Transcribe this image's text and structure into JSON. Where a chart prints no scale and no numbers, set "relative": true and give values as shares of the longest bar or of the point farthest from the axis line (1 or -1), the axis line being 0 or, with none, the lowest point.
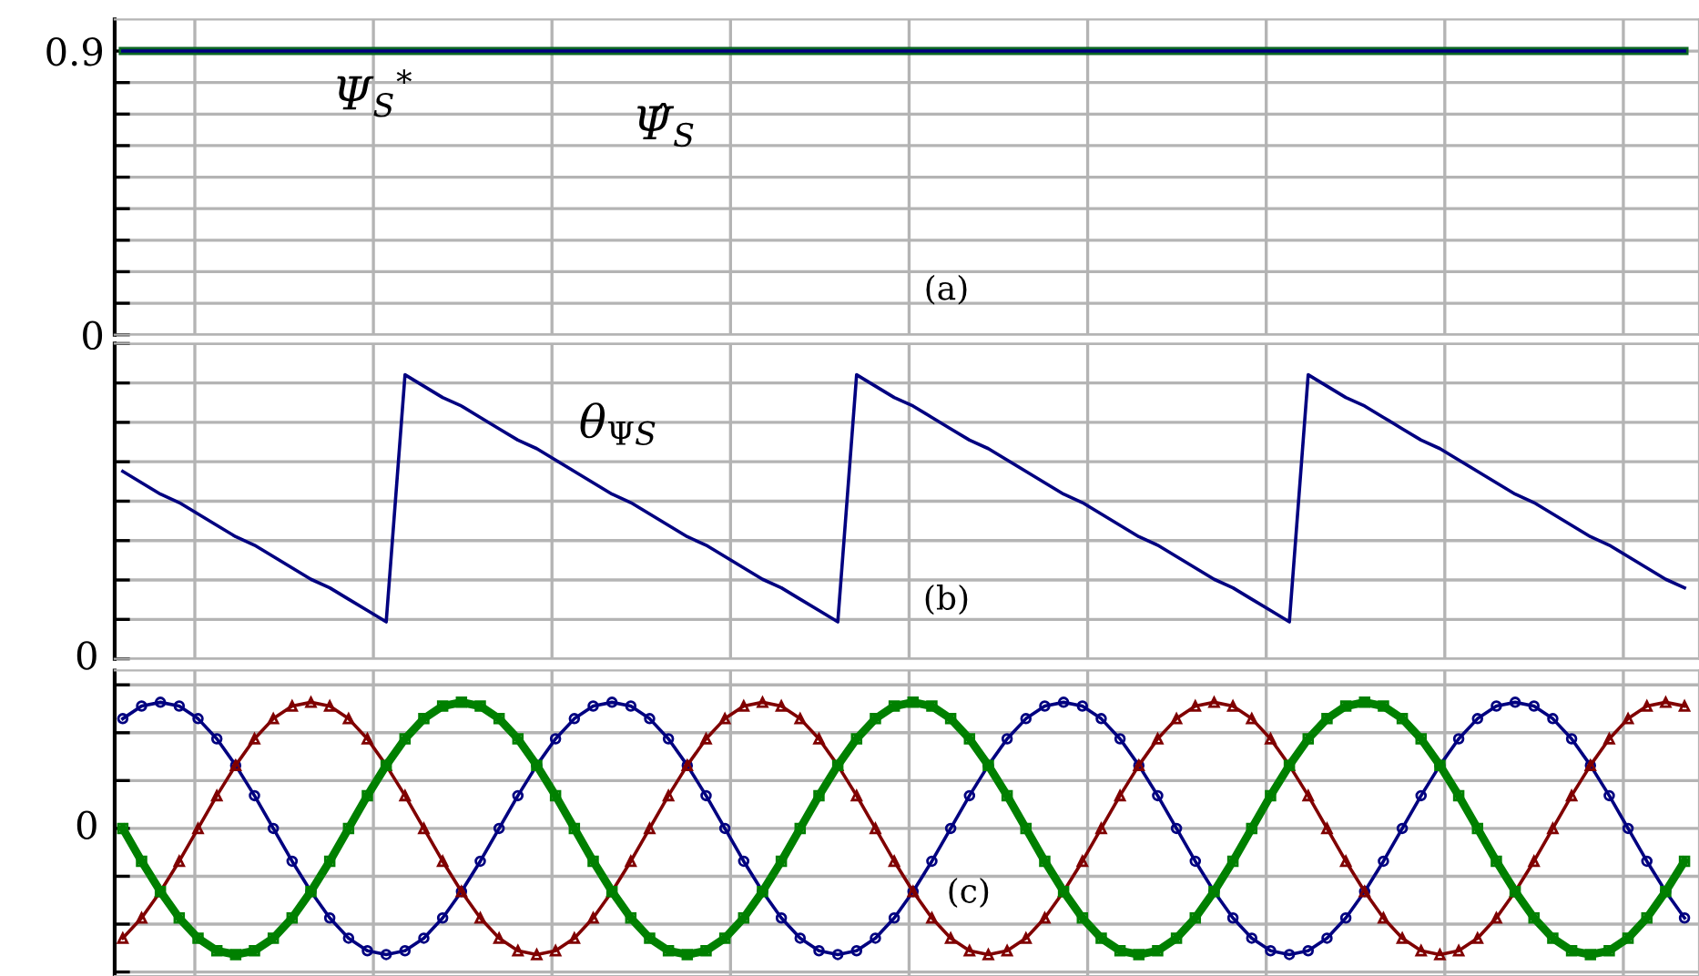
{
  "chart_data": [
    {
      "type": "line",
      "categories": [
        null,
        null,
        null,
        null,
        null,
        null,
        null,
        null,
        null,
        null,
        null,
        null,
        null,
        null,
        null,
        null,
        null,
        null,
        null,
        null,
        null,
        null,
        null,
        null,
        null,
        null,
        null,
        null,
        null,
        null,
        null,
        null,
        null,
        null,
        null,
        null,
        null,
        null,
        null,
        null,
        null,
        null,
        null,
        null,
        null,
        null,
        null,
        null,
        null,
        null,
        null,
        null,
        null,
        null,
        null,
        null,
        null,
        null,
        null,
        null,
        null,
        null,
        null,
        null,
        null,
        null,
        null,
        null,
        null,
        null,
        null,
        null,
        null,
        null,
        null,
        null,
        null,
        null,
        null,
        null,
        null,
        null,
        null,
        null
      ],
      "ylim": [
        0,
        1.0
      ],
      "yticks": [
        0,
        {
          "value": 0.1,
          "label": null
        },
        {
          "value": 0.2,
          "label": null
        },
        {
          "value": 0.3,
          "label": null
        },
        {
          "value": 0.4,
          "label": null
        },
        {
          "value": 0.5,
          "label": null
        },
        {
          "value": 0.6,
          "label": null
        },
        {
          "value": 0.7,
          "label": null
        },
        {
          "value": 0.8,
          "label": null
        },
        0.9
      ],
      "series": [
        {
          "name": "Ψ$_{S}$$^{*}$",
          "color": "#0b6623",
          "values": [
            0.9,
            0.9,
            0.9,
            0.9,
            0.9,
            0.9,
            0.9,
            0.9,
            0.9,
            0.9,
            0.9,
            0.9,
            0.9,
            0.9,
            0.9,
            0.9,
            0.9,
            0.9,
            0.9,
            0.9,
            0.9,
            0.9,
            0.9,
            0.9,
            0.9,
            0.9,
            0.9,
            0.9,
            0.9,
            0.9,
            0.9,
            0.9,
            0.9,
            0.9,
            0.9,
            0.9,
            0.9,
            0.9,
            0.9,
            0.9,
            0.9,
            0.9,
            0.9,
            0.9,
            0.9,
            0.9,
            0.9,
            0.9,
            0.9,
            0.9,
            0.9,
            0.9,
            0.9,
            0.9,
            0.9,
            0.9,
            0.9,
            0.9,
            0.9,
            0.9,
            0.9,
            0.9,
            0.9,
            0.9,
            0.9,
            0.9,
            0.9,
            0.9,
            0.9,
            0.9,
            0.9,
            0.9,
            0.9,
            0.9,
            0.9,
            0.9,
            0.9,
            0.9,
            0.9,
            0.9,
            0.9,
            0.9,
            0.9,
            0.9
          ]
        },
        {
          "name": "Ψ̂$_{S}$",
          "color": "#000080",
          "values": [
            0.9,
            0.9,
            0.9,
            0.9,
            0.9,
            0.9,
            0.9,
            0.9,
            0.9,
            0.9,
            0.9,
            0.9,
            0.9,
            0.9,
            0.9,
            0.9,
            0.9,
            0.9,
            0.9,
            0.9,
            0.9,
            0.9,
            0.9,
            0.9,
            0.9,
            0.9,
            0.9,
            0.9,
            0.9,
            0.9,
            0.9,
            0.9,
            0.9,
            0.9,
            0.9,
            0.9,
            0.9,
            0.9,
            0.9,
            0.9,
            0.9,
            0.9,
            0.9,
            0.9,
            0.9,
            0.9,
            0.9,
            0.9,
            0.9,
            0.9,
            0.9,
            0.9,
            0.9,
            0.9,
            0.9,
            0.9,
            0.9,
            0.9,
            0.9,
            0.9,
            0.9,
            0.9,
            0.9,
            0.9,
            0.9,
            0.9,
            0.9,
            0.9,
            0.9,
            0.9,
            0.9,
            0.9,
            0.9,
            0.9,
            0.9,
            0.9,
            0.9,
            0.9,
            0.9,
            0.9,
            0.9,
            0.9,
            0.9,
            0.9
          ]
        }
      ],
      "grid": true,
      "tick_labels": "y",
      "annotations": [
        "(a)"
      ]
    },
    {
      "type": "line",
      "relative": true,
      "categories": [
        null,
        null,
        null,
        null,
        null,
        null,
        null,
        null,
        null,
        null,
        null,
        null,
        null,
        null,
        null,
        null,
        null,
        null,
        null,
        null,
        null,
        null,
        null,
        null,
        null,
        null,
        null,
        null,
        null,
        null,
        null,
        null,
        null,
        null,
        null,
        null,
        null,
        null,
        null,
        null,
        null,
        null,
        null,
        null,
        null,
        null,
        null,
        null,
        null,
        null,
        null,
        null,
        null,
        null,
        null,
        null,
        null,
        null,
        null,
        null,
        null,
        null,
        null,
        null,
        null,
        null,
        null,
        null,
        null,
        null,
        null,
        null,
        null,
        null,
        null,
        null,
        null,
        null,
        null,
        null,
        null,
        null,
        null,
        null
      ],
      "series": [
        {
          "name": "θ$_{ΨS}$",
          "color": "#000080",
          "values": [
            0.66,
            0.62,
            0.58,
            0.55,
            0.51,
            0.47,
            0.43,
            0.4,
            0.36,
            0.32,
            0.28,
            0.25,
            0.21,
            0.17,
            0.13,
            1,
            0.96,
            0.92,
            0.89,
            0.85,
            0.81,
            0.77,
            0.74,
            0.7,
            0.66,
            0.62,
            0.58,
            0.55,
            0.51,
            0.47,
            0.43,
            0.4,
            0.36,
            0.32,
            0.28,
            0.25,
            0.21,
            0.17,
            0.13,
            1,
            0.96,
            0.92,
            0.89,
            0.85,
            0.81,
            0.77,
            0.74,
            0.7,
            0.66,
            0.62,
            0.58,
            0.55,
            0.51,
            0.47,
            0.43,
            0.4,
            0.36,
            0.32,
            0.28,
            0.25,
            0.21,
            0.17,
            0.13,
            1,
            0.96,
            0.92,
            0.89,
            0.85,
            0.81,
            0.77,
            0.74,
            0.7,
            0.66,
            0.62,
            0.58,
            0.55,
            0.51,
            0.47,
            0.43,
            0.4,
            0.36,
            0.32,
            0.28,
            0.25
          ]
        }
      ],
      "grid": true,
      "tick_labels": "y",
      "annotations": [
        "(b)",
        "0"
      ]
    },
    {
      "type": "line",
      "relative": true,
      "categories": [
        null,
        null,
        null,
        null,
        null,
        null,
        null,
        null,
        null,
        null,
        null,
        null,
        null,
        null,
        null,
        null,
        null,
        null,
        null,
        null,
        null,
        null,
        null,
        null,
        null,
        null,
        null,
        null,
        null,
        null,
        null,
        null,
        null,
        null,
        null,
        null,
        null,
        null,
        null,
        null,
        null,
        null,
        null,
        null,
        null,
        null,
        null,
        null,
        null,
        null,
        null,
        null,
        null,
        null,
        null,
        null,
        null,
        null,
        null,
        null,
        null,
        null,
        null,
        null,
        null,
        null,
        null,
        null,
        null,
        null,
        null,
        null,
        null,
        null,
        null,
        null,
        null,
        null,
        null,
        null,
        null,
        null,
        null,
        null
      ],
      "series": [
        {
          "color": "#000080",
          "marker": "circle",
          "values": [
            0.87,
            0.97,
            1,
            0.97,
            0.87,
            0.71,
            0.5,
            0.26,
            0,
            -0.26,
            -0.5,
            -0.71,
            -0.87,
            -0.97,
            -1,
            -0.97,
            -0.87,
            -0.71,
            -0.5,
            -0.26,
            0,
            0.26,
            0.5,
            0.71,
            0.87,
            0.97,
            1,
            0.97,
            0.87,
            0.71,
            0.5,
            0.26,
            0,
            -0.26,
            -0.5,
            -0.71,
            -0.87,
            -0.97,
            -1,
            -0.97,
            -0.87,
            -0.71,
            -0.5,
            -0.26,
            0,
            0.26,
            0.5,
            0.71,
            0.87,
            0.97,
            1,
            0.97,
            0.87,
            0.71,
            0.5,
            0.26,
            0,
            -0.26,
            -0.5,
            -0.71,
            -0.87,
            -0.97,
            -1,
            -0.97,
            -0.87,
            -0.71,
            -0.5,
            -0.26,
            0,
            0.26,
            0.5,
            0.71,
            0.87,
            0.97,
            1,
            0.97,
            0.87,
            0.71,
            0.5,
            0.26,
            0,
            -0.26,
            -0.5,
            -0.71
          ]
        },
        {
          "color": "#800000",
          "marker": "triangle",
          "values": [
            -0.87,
            -0.71,
            -0.5,
            -0.26,
            0,
            0.26,
            0.5,
            0.71,
            0.87,
            0.97,
            1,
            0.97,
            0.87,
            0.71,
            0.5,
            0.26,
            0,
            -0.26,
            -0.5,
            -0.71,
            -0.87,
            -0.97,
            -1,
            -0.97,
            -0.87,
            -0.71,
            -0.5,
            -0.26,
            0,
            0.26,
            0.5,
            0.71,
            0.87,
            0.97,
            1,
            0.97,
            0.87,
            0.71,
            0.5,
            0.26,
            0,
            -0.26,
            -0.5,
            -0.71,
            -0.87,
            -0.97,
            -1,
            -0.97,
            -0.87,
            -0.71,
            -0.5,
            -0.26,
            0,
            0.26,
            0.5,
            0.71,
            0.87,
            0.97,
            1,
            0.97,
            0.87,
            0.71,
            0.5,
            0.26,
            0,
            -0.26,
            -0.5,
            -0.71,
            -0.87,
            -0.97,
            -1,
            -0.97,
            -0.87,
            -0.71,
            -0.5,
            -0.26,
            0,
            0.26,
            0.5,
            0.71,
            0.87,
            0.97,
            1,
            0.97
          ]
        },
        {
          "color": "#008000",
          "marker": "square",
          "values": [
            0,
            -0.26,
            -0.5,
            -0.71,
            -0.87,
            -0.97,
            -1,
            -0.97,
            -0.87,
            -0.71,
            -0.5,
            -0.26,
            0,
            0.26,
            0.5,
            0.71,
            0.87,
            0.97,
            1,
            0.97,
            0.87,
            0.71,
            0.5,
            0.26,
            0,
            -0.26,
            -0.5,
            -0.71,
            -0.87,
            -0.97,
            -1,
            -0.97,
            -0.87,
            -0.71,
            -0.5,
            -0.26,
            0,
            0.26,
            0.5,
            0.71,
            0.87,
            0.97,
            1,
            0.97,
            0.87,
            0.71,
            0.5,
            0.26,
            0,
            -0.26,
            -0.5,
            -0.71,
            -0.87,
            -0.97,
            -1,
            -0.97,
            -0.87,
            -0.71,
            -0.5,
            -0.26,
            0,
            0.26,
            0.5,
            0.71,
            0.87,
            0.97,
            1,
            0.97,
            0.87,
            0.71,
            0.5,
            0.26,
            0,
            -0.26,
            -0.5,
            -0.71,
            -0.87,
            -0.97,
            -1,
            -0.97,
            -0.87,
            -0.71,
            -0.5,
            -0.26
          ]
        }
      ],
      "grid": true,
      "tick_labels": "y",
      "annotations": [
        "(c)",
        "0"
      ]
    }
  ]
}
